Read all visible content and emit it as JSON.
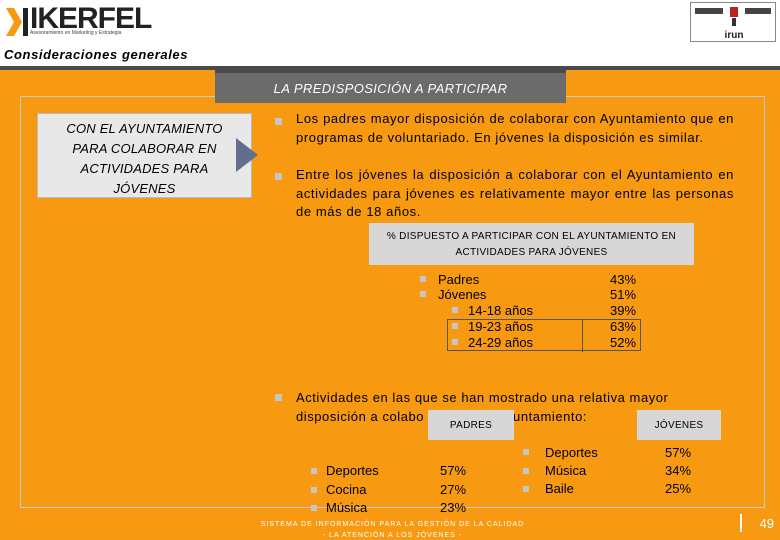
{
  "header": {
    "logo_text": "IKERFEL",
    "logo_tagline": "Asesoramiento en Marketing y Estrategia",
    "partner_logo_label": "irun"
  },
  "section": {
    "title": "Consideraciones generales"
  },
  "panel": {
    "title": "LA PREDISPOSICIÓN A PARTICIPAR",
    "left_box_lines": [
      "CON EL AYUNTAMIENTO",
      "PARA COLABORAR EN",
      "ACTIVIDADES PARA",
      "JÓVENES"
    ],
    "bullet1": "Los padres mayor disposición de colaborar con Ayuntamiento que en programas de voluntariado. En jóvenes la disposición es similar.",
    "bullet2": "Entre los jóvenes la disposición a colaborar con el Ayuntamiento en actividades para jóvenes es relativamente mayor entre las personas de más de 18 años.",
    "table_title_lines": [
      "% DISPUESTO A PARTICIPAR CON EL AYUNTAMIENTO EN",
      "ACTIVIDADES PARA JÓVENES"
    ],
    "rows": [
      {
        "label": "Padres",
        "value": "43%"
      },
      {
        "label": "Jóvenes",
        "value": "51%"
      },
      {
        "label": "14-18 años",
        "value": "39%"
      },
      {
        "label": "19-23 años",
        "value": "63%"
      },
      {
        "label": "24-29 años",
        "value": "52%"
      }
    ],
    "bullet3_line1": "Actividades en las que se han mostrado una relativa mayor",
    "bullet3_line2_start": "disposición a colabo",
    "bullet3_line2_end": "yuntamiento:",
    "padres_label": "PADRES",
    "jovenes_label": "JÓVENES",
    "padres_items": [
      {
        "label": "Deportes",
        "value": "57%"
      },
      {
        "label": "Cocina",
        "value": "27%"
      },
      {
        "label": "Música",
        "value": "23%"
      }
    ],
    "jovenes_items": [
      {
        "label": "Deportes",
        "value": "57%"
      },
      {
        "label": "Música",
        "value": "34%"
      },
      {
        "label": "Baile",
        "value": "25%"
      }
    ]
  },
  "footer": {
    "line1": "SISTEMA DE INFORMACIÓN PARA LA GESTIÓN DE LA CALIDAD",
    "line2": "- LA ATENCIÓN A LOS JÓVENES -",
    "page": "49"
  },
  "colors": {
    "background_orange": "#F79A12",
    "pill_gray": "#6b6b6b",
    "arrow_blue": "#636e8e"
  }
}
